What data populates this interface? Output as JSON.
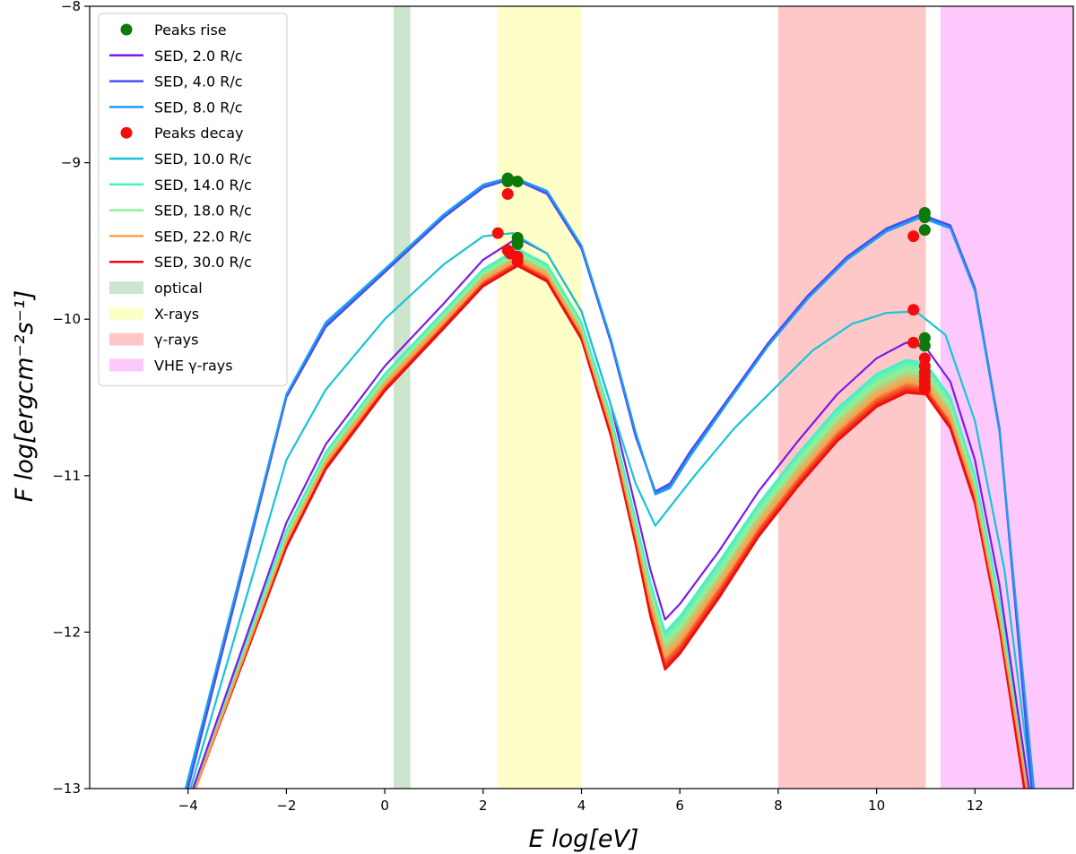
{
  "chart_data": {
    "type": "line",
    "title": "",
    "xlabel": "E log[eV]",
    "ylabel": "F log[ergcm⁻²s⁻¹]",
    "xlim": [
      -6.0,
      14.0
    ],
    "ylim": [
      -13.0,
      -8.0
    ],
    "xticks": [
      -4,
      -2,
      0,
      2,
      4,
      6,
      8,
      10,
      12
    ],
    "yticks": [
      -13,
      -12,
      -11,
      -10,
      -9,
      -8
    ],
    "xtick_labels": [
      "−4",
      "−2",
      "0",
      "2",
      "4",
      "6",
      "8",
      "10",
      "12"
    ],
    "ytick_labels": [
      "−13",
      "−12",
      "−11",
      "−10",
      "−9",
      "−8"
    ],
    "bands": [
      {
        "name": "optical",
        "range": [
          0.18,
          0.52
        ],
        "color": "#cde4cd"
      },
      {
        "name": "X-rays",
        "range": [
          2.3,
          4.0
        ],
        "color": "#fefec9"
      },
      {
        "name": "γ-rays",
        "range": [
          8.0,
          11.0
        ],
        "color": "#fec8c8"
      },
      {
        "name": "VHE γ-rays",
        "range": [
          11.3,
          14.0
        ],
        "color": "#fdc9fd"
      }
    ],
    "series": [
      {
        "name": "SED, 2.0 R/c",
        "color": "#7b1be8",
        "in_legend": true,
        "x": [
          -3.9,
          -2.0,
          -1.2,
          0.0,
          1.2,
          2.0,
          2.7,
          3.3,
          4.0,
          4.6,
          5.1,
          5.4,
          5.7,
          6.0,
          6.8,
          7.6,
          8.4,
          9.2,
          10.0,
          10.6,
          11.0,
          11.5,
          12.0,
          12.5,
          13.1
        ],
        "y": [
          -13.0,
          -11.3,
          -10.8,
          -10.3,
          -9.9,
          -9.62,
          -9.48,
          -9.58,
          -9.95,
          -10.55,
          -11.2,
          -11.6,
          -11.92,
          -11.82,
          -11.48,
          -11.1,
          -10.78,
          -10.48,
          -10.25,
          -10.15,
          -10.18,
          -10.4,
          -10.9,
          -11.7,
          -13.0
        ]
      },
      {
        "name": "SED, 4.0 R/c",
        "color": "#4a4ded",
        "in_legend": true,
        "x": [
          -4.0,
          -2.0,
          -1.2,
          0.0,
          1.2,
          2.0,
          2.6,
          3.3,
          4.0,
          4.6,
          5.1,
          5.5,
          5.8,
          6.2,
          7.0,
          7.8,
          8.6,
          9.4,
          10.2,
          10.9,
          11.5,
          12.0,
          12.5,
          13.15
        ],
        "y": [
          -13.0,
          -10.5,
          -10.05,
          -9.7,
          -9.35,
          -9.16,
          -9.1,
          -9.2,
          -9.55,
          -10.15,
          -10.75,
          -11.1,
          -11.05,
          -10.85,
          -10.5,
          -10.15,
          -9.85,
          -9.6,
          -9.42,
          -9.33,
          -9.4,
          -9.8,
          -10.7,
          -13.0
        ]
      },
      {
        "name": "SED, 8.0 R/c",
        "color": "#1e9ff0",
        "in_legend": true,
        "x": [
          -4.05,
          -2.0,
          -1.2,
          0.0,
          1.2,
          2.0,
          2.6,
          3.3,
          4.0,
          4.6,
          5.1,
          5.5,
          5.8,
          6.2,
          7.0,
          7.8,
          8.6,
          9.4,
          10.2,
          10.9,
          11.5,
          12.0,
          12.5,
          13.2
        ],
        "y": [
          -13.0,
          -10.48,
          -10.02,
          -9.68,
          -9.33,
          -9.14,
          -9.09,
          -9.18,
          -9.53,
          -10.13,
          -10.72,
          -11.12,
          -11.08,
          -10.88,
          -10.52,
          -10.17,
          -9.87,
          -9.62,
          -9.44,
          -9.35,
          -9.42,
          -9.82,
          -10.72,
          -13.0
        ]
      },
      {
        "name": "SED, 10.0 R/c",
        "color": "#17c4d7",
        "in_legend": true,
        "x": [
          -3.95,
          -2.0,
          -1.2,
          0.0,
          1.2,
          2.0,
          2.6,
          3.3,
          4.0,
          4.6,
          5.1,
          5.5,
          5.8,
          6.3,
          7.1,
          7.9,
          8.7,
          9.5,
          10.2,
          10.8,
          11.4,
          12.0,
          12.6,
          13.15
        ],
        "y": [
          -13.0,
          -10.9,
          -10.45,
          -10.0,
          -9.65,
          -9.47,
          -9.45,
          -9.58,
          -9.95,
          -10.55,
          -11.05,
          -11.32,
          -11.2,
          -11.0,
          -10.7,
          -10.45,
          -10.2,
          -10.03,
          -9.96,
          -9.95,
          -10.1,
          -10.65,
          -11.6,
          -13.0
        ]
      },
      {
        "name": "SED, 14.0 R/c",
        "color": "#47f0c7",
        "in_legend": true,
        "x": [
          -3.9,
          -2.0,
          -1.2,
          0.0,
          1.2,
          2.0,
          2.7,
          3.3,
          4.0,
          4.6,
          5.1,
          5.4,
          5.7,
          6.0,
          6.8,
          7.6,
          8.4,
          9.2,
          10.0,
          10.6,
          11.0,
          11.5,
          12.0,
          12.5,
          13.1
        ],
        "y": [
          -13.0,
          -11.35,
          -10.85,
          -10.35,
          -9.95,
          -9.68,
          -9.55,
          -9.65,
          -10.02,
          -10.62,
          -11.28,
          -11.68,
          -12.0,
          -11.9,
          -11.55,
          -11.18,
          -10.86,
          -10.57,
          -10.35,
          -10.26,
          -10.28,
          -10.5,
          -11.0,
          -11.8,
          -13.0
        ]
      },
      {
        "name": "SED, 18.0 R/c",
        "color": "#8ef09a",
        "in_legend": true,
        "x": [
          -3.9,
          -2.0,
          -1.2,
          0.0,
          1.2,
          2.0,
          2.7,
          3.3,
          4.0,
          4.6,
          5.1,
          5.4,
          5.7,
          6.0,
          6.8,
          7.6,
          8.4,
          9.2,
          10.0,
          10.6,
          11.0,
          11.5,
          12.0,
          12.5,
          13.1
        ],
        "y": [
          -13.0,
          -11.38,
          -10.88,
          -10.38,
          -9.98,
          -9.71,
          -9.58,
          -9.68,
          -10.05,
          -10.65,
          -11.32,
          -11.74,
          -12.07,
          -11.97,
          -11.62,
          -11.24,
          -10.92,
          -10.63,
          -10.41,
          -10.32,
          -10.34,
          -10.56,
          -11.05,
          -11.85,
          -13.0
        ]
      },
      {
        "name": "SED, 22.0 R/c",
        "color": "#f7a24e",
        "in_legend": true,
        "x": [
          -3.85,
          -2.0,
          -1.2,
          0.0,
          1.2,
          2.0,
          2.7,
          3.3,
          4.0,
          4.6,
          5.1,
          5.4,
          5.7,
          6.0,
          6.8,
          7.6,
          8.4,
          9.2,
          10.0,
          10.6,
          11.0,
          11.5,
          12.0,
          12.5,
          13.05
        ],
        "y": [
          -13.0,
          -11.42,
          -10.92,
          -10.42,
          -10.02,
          -9.75,
          -9.62,
          -9.72,
          -10.09,
          -10.7,
          -11.38,
          -11.82,
          -12.16,
          -12.06,
          -11.7,
          -11.32,
          -11.0,
          -10.71,
          -10.49,
          -10.4,
          -10.42,
          -10.64,
          -11.12,
          -11.92,
          -13.0
        ]
      },
      {
        "name": "SED, 30.0 R/c",
        "color": "#f00a0a",
        "in_legend": true,
        "x": [
          -3.85,
          -2.0,
          -1.2,
          0.0,
          1.2,
          2.0,
          2.7,
          3.3,
          4.0,
          4.6,
          5.1,
          5.4,
          5.7,
          6.0,
          6.8,
          7.6,
          8.4,
          9.2,
          10.0,
          10.6,
          11.0,
          11.5,
          12.0,
          12.5,
          13.0
        ],
        "y": [
          -13.0,
          -11.46,
          -10.96,
          -10.46,
          -10.06,
          -9.79,
          -9.66,
          -9.76,
          -10.13,
          -10.75,
          -11.44,
          -11.9,
          -12.24,
          -12.14,
          -11.78,
          -11.39,
          -11.07,
          -10.78,
          -10.56,
          -10.47,
          -10.48,
          -10.7,
          -11.18,
          -11.98,
          -13.0
        ]
      }
    ],
    "peaks_rise": {
      "name": "Peaks rise",
      "color": "#0b7a0b",
      "x": [
        2.5,
        2.5,
        2.7,
        2.7,
        2.7,
        10.98,
        10.98,
        10.98,
        10.98,
        10.98
      ],
      "y": [
        -9.1,
        -9.12,
        -9.12,
        -9.48,
        -9.52,
        -9.32,
        -9.35,
        -9.43,
        -10.12,
        -10.17
      ]
    },
    "peaks_decay": {
      "name": "Peaks decay",
      "color": "#f20e0e",
      "x": [
        2.3,
        2.5,
        2.5,
        2.55,
        2.7,
        2.7,
        10.75,
        10.75,
        10.75,
        10.98,
        10.98,
        10.98,
        10.98,
        10.98,
        10.98,
        10.98
      ],
      "y": [
        -9.45,
        -9.2,
        -9.56,
        -9.58,
        -9.6,
        -9.63,
        -9.47,
        -9.94,
        -10.15,
        -10.25,
        -10.3,
        -10.34,
        -10.37,
        -10.4,
        -10.43,
        -10.45
      ]
    },
    "legend": {
      "location": "upper-left",
      "entries": [
        {
          "label": "Peaks rise",
          "kind": "marker",
          "color": "#0b7a0b"
        },
        {
          "label": "SED, 2.0 R/c",
          "kind": "line",
          "color": "#7b1be8"
        },
        {
          "label": "SED, 4.0 R/c",
          "kind": "line",
          "color": "#4a4ded"
        },
        {
          "label": "SED, 8.0 R/c",
          "kind": "line",
          "color": "#1e9ff0"
        },
        {
          "label": "Peaks decay",
          "kind": "marker",
          "color": "#f20e0e"
        },
        {
          "label": "SED, 10.0 R/c",
          "kind": "line",
          "color": "#17c4d7"
        },
        {
          "label": "SED, 14.0 R/c",
          "kind": "line",
          "color": "#47f0c7"
        },
        {
          "label": "SED, 18.0 R/c",
          "kind": "line",
          "color": "#8ef09a"
        },
        {
          "label": "SED, 22.0 R/c",
          "kind": "line",
          "color": "#f7a24e"
        },
        {
          "label": "SED, 30.0 R/c",
          "kind": "line",
          "color": "#f00a0a"
        },
        {
          "label": "optical",
          "kind": "patch",
          "color": "#cde4cd"
        },
        {
          "label": "X-rays",
          "kind": "patch",
          "color": "#fefec9"
        },
        {
          "label": "γ-rays",
          "kind": "patch",
          "color": "#fec8c8"
        },
        {
          "label": "VHE γ-rays",
          "kind": "patch",
          "color": "#fdc9fd"
        }
      ]
    }
  }
}
